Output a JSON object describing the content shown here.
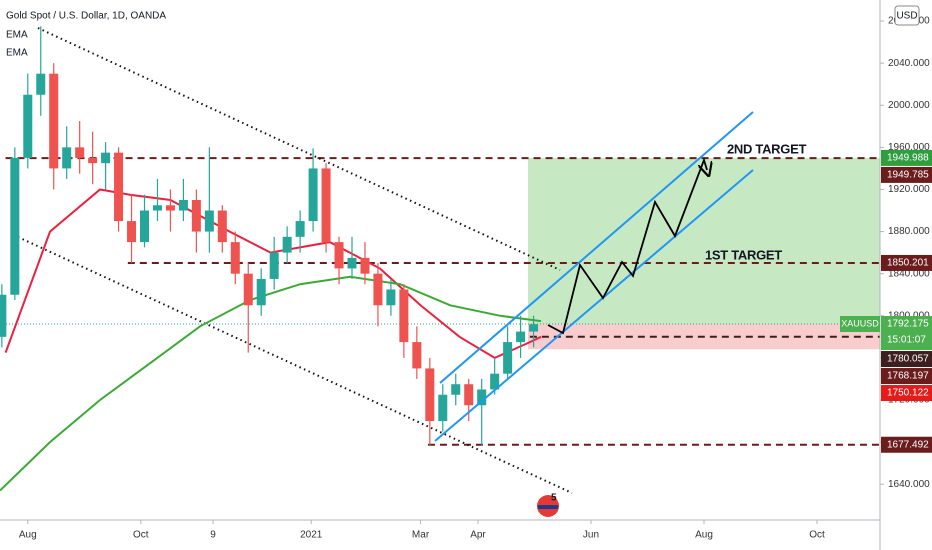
{
  "chart_data": {
    "type": "candlestick",
    "title": "Gold Spot / U.S. Dollar, 1D, OANDA",
    "indicators": [
      "EMA",
      "EMA"
    ],
    "currency": "USD",
    "symbol": "XAUUSD",
    "countdown": "15:01:07",
    "event_badge": "5",
    "annotations": [
      "2ND TARGET",
      "1ST TARGET"
    ],
    "x": [
      -14,
      -7,
      0,
      7,
      14,
      21,
      28,
      35,
      42,
      49,
      56,
      63,
      70,
      77,
      84,
      91,
      98,
      105,
      112,
      119,
      126,
      133,
      140,
      147,
      154,
      161,
      168,
      175,
      182,
      189,
      196,
      203,
      210,
      217,
      224,
      231,
      238,
      245,
      252,
      259,
      266,
      273
    ],
    "open": [
      1780,
      1820,
      1950,
      2010,
      2030,
      1940,
      1960,
      1950,
      1945,
      1955,
      1890,
      1870,
      1900,
      1905,
      1900,
      1910,
      1880,
      1900,
      1870,
      1840,
      1810,
      1835,
      1860,
      1875,
      1890,
      1940,
      1870,
      1845,
      1855,
      1840,
      1810,
      1825,
      1775,
      1750,
      1700,
      1725,
      1735,
      1715,
      1730,
      1745,
      1775,
      1785
    ],
    "high": [
      1830,
      1960,
      2030,
      2075,
      2040,
      1980,
      1985,
      1975,
      1965,
      1960,
      1915,
      1915,
      1930,
      1920,
      1930,
      1920,
      1960,
      1905,
      1880,
      1850,
      1845,
      1875,
      1885,
      1900,
      1959,
      1945,
      1875,
      1875,
      1870,
      1850,
      1835,
      1830,
      1790,
      1760,
      1735,
      1745,
      1740,
      1740,
      1760,
      1790,
      1800,
      1800
    ],
    "low": [
      1770,
      1815,
      1940,
      1990,
      1920,
      1930,
      1935,
      1925,
      1920,
      1880,
      1850,
      1865,
      1890,
      1880,
      1890,
      1860,
      1860,
      1860,
      1830,
      1765,
      1800,
      1825,
      1850,
      1860,
      1880,
      1860,
      1830,
      1835,
      1830,
      1790,
      1800,
      1760,
      1740,
      1677,
      1690,
      1715,
      1700,
      1677,
      1725,
      1740,
      1760,
      1770
    ],
    "close": [
      1820,
      1950,
      2010,
      2030,
      1940,
      1960,
      1950,
      1945,
      1955,
      1890,
      1870,
      1900,
      1905,
      1900,
      1910,
      1880,
      1900,
      1870,
      1840,
      1810,
      1835,
      1860,
      1875,
      1890,
      1940,
      1870,
      1845,
      1855,
      1840,
      1810,
      1825,
      1775,
      1750,
      1700,
      1725,
      1735,
      1715,
      1730,
      1745,
      1775,
      1785,
      1792
    ],
    "up_color": "#26a69a",
    "down_color": "#ef5350",
    "lines": [
      {
        "color": "#e8223f",
        "x": [
          -12,
          12,
          39,
          55,
          77,
          109,
          131,
          163,
          190,
          212,
          233,
          252,
          271,
          277
        ],
        "values": [
          1765,
          1880,
          1920,
          1915,
          1910,
          1880,
          1860,
          1870,
          1845,
          1810,
          1780,
          1760,
          1775,
          1780
        ]
      },
      {
        "color": "#3aaa35",
        "x": [
          -15,
          12,
          39,
          66,
          93,
          120,
          147,
          174,
          201,
          228,
          255,
          277
        ],
        "values": [
          1634,
          1680,
          1720,
          1755,
          1790,
          1815,
          1830,
          1837,
          1830,
          1810,
          1800,
          1795
        ]
      }
    ],
    "xlim": [
      -15,
      460
    ],
    "xticks": [
      {
        "value": 0,
        "label": "Aug"
      },
      {
        "value": 61,
        "label": "Oct"
      },
      {
        "value": 100,
        "label": "9"
      },
      {
        "value": 153,
        "label": "2021"
      },
      {
        "value": 212,
        "label": "Mar"
      },
      {
        "value": 243,
        "label": "Apr"
      },
      {
        "value": 304,
        "label": "Jun"
      },
      {
        "value": 365,
        "label": "Aug"
      },
      {
        "value": 426,
        "label": "Oct"
      }
    ],
    "ylim": [
      1606,
      2100
    ],
    "yticks": [
      {
        "value": 1640,
        "label": "1640.000"
      },
      {
        "value": 1680,
        "label": "1680.000"
      },
      {
        "value": 1720,
        "label": "1720.000"
      },
      {
        "value": 1760,
        "label": "1760.000"
      },
      {
        "value": 1800,
        "label": "1800.000"
      },
      {
        "value": 1840,
        "label": "1840.000"
      },
      {
        "value": 1880,
        "label": "1880.000"
      },
      {
        "value": 1920,
        "label": "1920.000"
      },
      {
        "value": 1960,
        "label": "1960.000"
      },
      {
        "value": 2000,
        "label": "2000.000"
      },
      {
        "value": 2040,
        "label": "2040.000"
      },
      {
        "value": 2080,
        "label": "2080.000"
      }
    ],
    "zones": [
      {
        "low": 1792.175,
        "high": 1949.785,
        "start": 270,
        "color": "#c6e9c4"
      },
      {
        "low": 1768.197,
        "high": 1792.175,
        "start": 270,
        "color": "#f9cdcd"
      }
    ],
    "price_labels": [
      {
        "value": 1949.988,
        "color": "#2e9e3f"
      },
      {
        "value": 1949.785,
        "color": "#6b1c1c",
        "line": "dashed",
        "from": -12
      },
      {
        "value": 1850.201,
        "color": "#6b1c1c",
        "line": "dashed",
        "from": 54
      },
      {
        "value": 1792.175,
        "color": "#4caf50",
        "line": "dotted",
        "from": -15
      },
      {
        "value": 1780.057,
        "color": "#3d1f1f",
        "line": "dashed",
        "from": 271
      },
      {
        "value": 1768.197,
        "color": "#6b1c1c"
      },
      {
        "value": 1750.122,
        "color": "#e31b1b"
      },
      {
        "value": 1677.492,
        "color": "#6b1c1c",
        "line": "dashed",
        "from": 216
      }
    ]
  }
}
